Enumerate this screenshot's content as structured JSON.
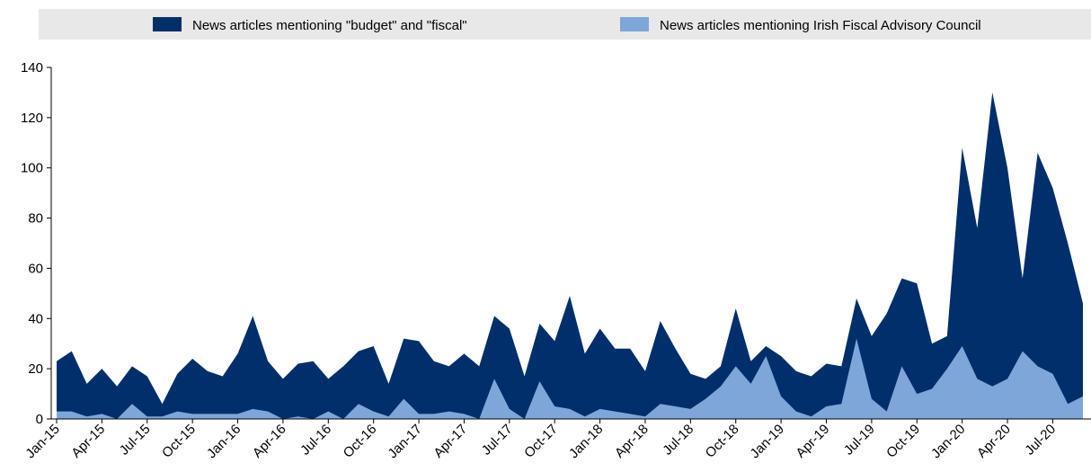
{
  "chart_data": {
    "type": "area",
    "categories": [
      "Jan-15",
      null,
      null,
      "Apr-15",
      null,
      null,
      "Jul-15",
      null,
      null,
      "Oct-15",
      null,
      null,
      "Jan-16",
      null,
      null,
      "Apr-16",
      null,
      null,
      "Jul-16",
      null,
      null,
      "Oct-16",
      null,
      null,
      "Jan-17",
      null,
      null,
      "Apr-17",
      null,
      null,
      "Jul-17",
      null,
      null,
      "Oct-17",
      null,
      null,
      "Jan-18",
      null,
      null,
      "Apr-18",
      null,
      null,
      "Jul-18",
      null,
      null,
      "Oct-18",
      null,
      null,
      "Jan-19",
      null,
      null,
      "Apr-19",
      null,
      null,
      "Jul-19",
      null,
      null,
      "Oct-19",
      null,
      null,
      "Jan-20",
      null,
      null,
      "Apr-20",
      null,
      null,
      "Jul-20",
      null,
      null
    ],
    "series": [
      {
        "name": "News articles mentioning \"budget\" and \"fiscal\"",
        "color": "#002f6c",
        "values": [
          23,
          27,
          14,
          20,
          13,
          21,
          17,
          6,
          18,
          24,
          19,
          17,
          26,
          41,
          23,
          16,
          22,
          23,
          16,
          21,
          27,
          29,
          14,
          32,
          31,
          23,
          21,
          26,
          21,
          41,
          36,
          17,
          38,
          31,
          49,
          26,
          36,
          28,
          28,
          19,
          39,
          28,
          18,
          16,
          21,
          44,
          23,
          29,
          25,
          19,
          17,
          22,
          21,
          48,
          33,
          42,
          56,
          54,
          30,
          33,
          108,
          76,
          130,
          100,
          56,
          106,
          92,
          70,
          46
        ]
      },
      {
        "name": "News articles mentioning Irish Fiscal Advisory Council",
        "color": "#7ea6d9",
        "values": [
          3,
          3,
          1,
          2,
          0,
          6,
          1,
          1,
          3,
          2,
          2,
          2,
          2,
          4,
          3,
          0,
          1,
          0,
          3,
          0,
          6,
          3,
          1,
          8,
          2,
          2,
          3,
          2,
          0,
          16,
          4,
          0,
          15,
          5,
          4,
          1,
          4,
          3,
          2,
          1,
          6,
          5,
          4,
          8,
          13,
          21,
          14,
          25,
          9,
          3,
          1,
          5,
          6,
          32,
          8,
          3,
          21,
          10,
          12,
          20,
          29,
          16,
          13,
          16,
          27,
          21,
          18,
          6,
          9
        ]
      }
    ],
    "ylim": [
      0,
      140
    ],
    "yticks": [
      0,
      20,
      40,
      60,
      80,
      100,
      120,
      140
    ],
    "legend": "top"
  }
}
